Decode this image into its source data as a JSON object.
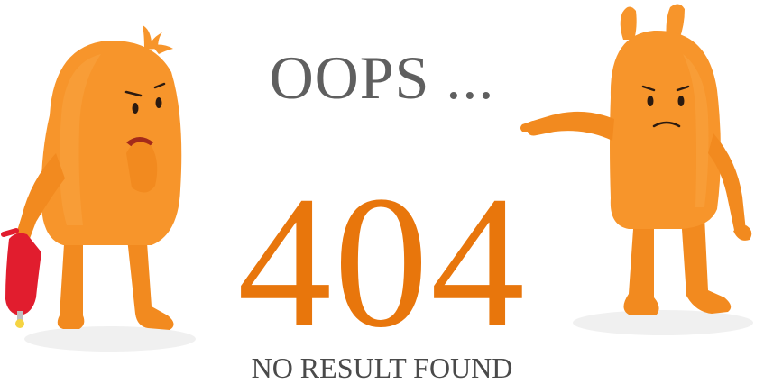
{
  "headline": "OOPS ...",
  "error_code": "404",
  "subline": "NO RESULT FOUND",
  "colors": {
    "accent": "#e8760c",
    "character_body": "#f7952b",
    "character_shade": "#e67f1a",
    "text_gray": "#5f5f5f",
    "extinguisher_red": "#e11d2e"
  },
  "icons": {
    "left_character": "sad-orange-creature-with-extinguisher",
    "right_character": "pointing-orange-creature"
  }
}
